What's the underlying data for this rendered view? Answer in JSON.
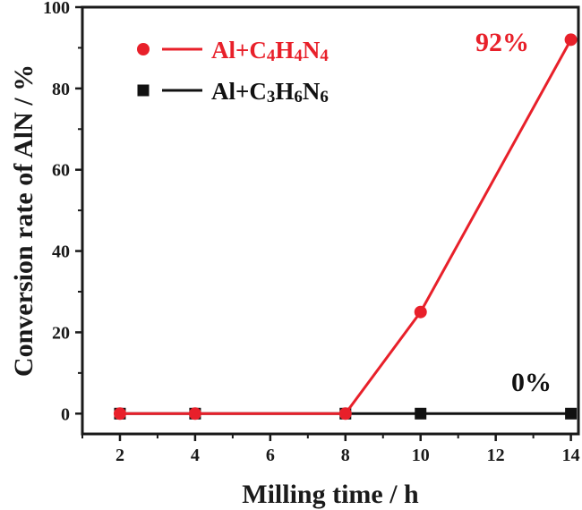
{
  "chart_data": {
    "type": "line",
    "title": "",
    "xlabel": "Milling time / h",
    "ylabel": "Conversion rate of AlN / %",
    "xlim": [
      1,
      14.2
    ],
    "ylim": [
      -5,
      100
    ],
    "x_ticks": [
      2,
      4,
      6,
      8,
      10,
      12,
      14
    ],
    "y_ticks": [
      0,
      20,
      40,
      60,
      80,
      100
    ],
    "x_tick_labels": [
      "2",
      "4",
      "6",
      "8",
      "10",
      "12",
      "14"
    ],
    "y_tick_labels": [
      "0",
      "20",
      "40",
      "60",
      "80",
      "100"
    ],
    "grid": false,
    "legend_position": "top-left",
    "series": [
      {
        "name": "Al+C4H4N4",
        "legend_parts": [
          [
            "Al+C",
            false
          ],
          [
            "4",
            true
          ],
          [
            "H",
            false
          ],
          [
            "4",
            true
          ],
          [
            "N",
            false
          ],
          [
            "4",
            true
          ]
        ],
        "color": "#e8202a",
        "marker": "circle",
        "x": [
          2,
          4,
          8,
          10,
          14
        ],
        "y": [
          0,
          0,
          0,
          25,
          92
        ]
      },
      {
        "name": "Al+C3H6N6",
        "legend_parts": [
          [
            "Al+C",
            false
          ],
          [
            "3",
            true
          ],
          [
            "H",
            false
          ],
          [
            "6",
            true
          ],
          [
            "N",
            false
          ],
          [
            "6",
            true
          ]
        ],
        "color": "#111111",
        "marker": "square",
        "x": [
          2,
          4,
          8,
          10,
          14
        ],
        "y": [
          0,
          0,
          0,
          0,
          0
        ]
      }
    ],
    "annotations": [
      {
        "text": "92%",
        "series": 0,
        "x": 14,
        "y": 92,
        "anchor": "upper-left"
      },
      {
        "text": "0%",
        "series": 1,
        "x": 14,
        "y": 0,
        "anchor": "upper-left"
      }
    ]
  }
}
